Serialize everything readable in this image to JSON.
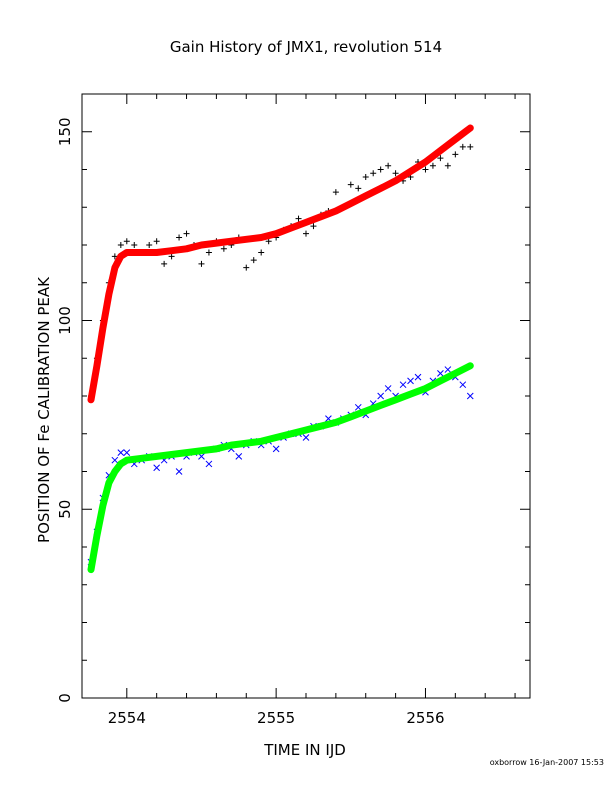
{
  "chart_data": {
    "type": "scatter",
    "title": "Gain History of JMX1, revolution 514",
    "xlabel": "TIME IN IJD",
    "ylabel": "POSITION OF Fe CALIBRATION PEAK",
    "xlim": [
      2553.7,
      2556.7
    ],
    "ylim": [
      0,
      160
    ],
    "xticks": [
      2554,
      2555,
      2556
    ],
    "xticklabels": [
      "2554",
      "2555",
      "2556"
    ],
    "yticks": [
      0,
      50,
      100,
      150
    ],
    "yticklabels": [
      "0",
      "50",
      "100",
      "150"
    ],
    "grid": false,
    "legend": "none",
    "series": [
      {
        "marker": "plus",
        "color": "#000000",
        "x": [
          2553.76,
          2553.8,
          2553.84,
          2553.88,
          2553.92,
          2553.96,
          2554.0,
          2554.05,
          2554.1,
          2554.15,
          2554.2,
          2554.25,
          2554.3,
          2554.35,
          2554.4,
          2554.45,
          2554.5,
          2554.55,
          2554.6,
          2554.65,
          2554.7,
          2554.75,
          2554.8,
          2554.85,
          2554.9,
          2554.95,
          2555.0,
          2555.05,
          2555.1,
          2555.15,
          2555.2,
          2555.25,
          2555.3,
          2555.35,
          2555.4,
          2555.45,
          2555.5,
          2555.55,
          2555.6,
          2555.65,
          2555.7,
          2555.75,
          2555.8,
          2555.85,
          2555.9,
          2555.95,
          2556.0,
          2556.05,
          2556.1,
          2556.15,
          2556.2,
          2556.25,
          2556.3
        ],
        "y": [
          80,
          90,
          100,
          110,
          117,
          120,
          121,
          120,
          118,
          120,
          121,
          115,
          117,
          122,
          123,
          120,
          115,
          118,
          121,
          119,
          120,
          122,
          114,
          116,
          118,
          121,
          122,
          124,
          125,
          127,
          123,
          125,
          128,
          129,
          134,
          130,
          136,
          135,
          138,
          139,
          140,
          141,
          139,
          137,
          138,
          142,
          140,
          141,
          143,
          141,
          144,
          146,
          146
        ]
      },
      {
        "marker": "line",
        "color": "#ff0000",
        "x": [
          2553.76,
          2553.8,
          2553.84,
          2553.88,
          2553.92,
          2553.96,
          2554.0,
          2554.1,
          2554.2,
          2554.3,
          2554.4,
          2554.5,
          2554.6,
          2554.7,
          2554.8,
          2554.9,
          2555.0,
          2555.1,
          2555.2,
          2555.3,
          2555.4,
          2555.5,
          2555.6,
          2555.7,
          2555.8,
          2555.9,
          2556.0,
          2556.1,
          2556.2,
          2556.3
        ],
        "y": [
          79,
          88,
          98,
          107,
          114,
          117,
          118,
          118,
          118,
          118.5,
          119,
          120,
          120.5,
          121,
          121.5,
          122,
          123,
          124.5,
          126,
          127.5,
          129,
          131,
          133,
          135,
          137,
          139.5,
          142,
          145,
          148,
          151
        ]
      },
      {
        "marker": "cross",
        "color": "#0000ff",
        "x": [
          2553.76,
          2553.8,
          2553.84,
          2553.88,
          2553.92,
          2553.96,
          2554.0,
          2554.05,
          2554.1,
          2554.15,
          2554.2,
          2554.25,
          2554.3,
          2554.35,
          2554.4,
          2554.45,
          2554.5,
          2554.55,
          2554.6,
          2554.65,
          2554.7,
          2554.75,
          2554.8,
          2554.85,
          2554.9,
          2554.95,
          2555.0,
          2555.05,
          2555.1,
          2555.15,
          2555.2,
          2555.25,
          2555.3,
          2555.35,
          2555.4,
          2555.45,
          2555.5,
          2555.55,
          2555.6,
          2555.65,
          2555.7,
          2555.75,
          2555.8,
          2555.85,
          2555.9,
          2555.95,
          2556.0,
          2556.05,
          2556.1,
          2556.15,
          2556.2,
          2556.25,
          2556.3
        ],
        "y": [
          36,
          44,
          53,
          59,
          63,
          65,
          65,
          62,
          63,
          64,
          61,
          63,
          64,
          60,
          64,
          65,
          64,
          62,
          66,
          67,
          66,
          64,
          67,
          68,
          67,
          68,
          66,
          69,
          70,
          70,
          69,
          72,
          72,
          74,
          73,
          74,
          75,
          77,
          75,
          78,
          80,
          82,
          80,
          83,
          84,
          85,
          81,
          84,
          86,
          87,
          85,
          83,
          80
        ]
      },
      {
        "marker": "line",
        "color": "#00ff00",
        "x": [
          2553.76,
          2553.8,
          2553.84,
          2553.88,
          2553.92,
          2553.96,
          2554.0,
          2554.1,
          2554.2,
          2554.3,
          2554.4,
          2554.5,
          2554.6,
          2554.7,
          2554.8,
          2554.9,
          2555.0,
          2555.1,
          2555.2,
          2555.3,
          2555.4,
          2555.5,
          2555.6,
          2555.7,
          2555.8,
          2555.9,
          2556.0,
          2556.1,
          2556.2,
          2556.3
        ],
        "y": [
          34,
          43,
          51,
          57,
          60,
          62,
          63,
          63.5,
          64,
          64.5,
          65,
          65.5,
          66,
          67,
          67.5,
          68,
          69,
          70,
          71,
          72,
          73,
          74.5,
          76,
          77.5,
          79,
          80.5,
          82,
          84,
          86,
          88
        ]
      }
    ]
  },
  "footer_text": "oxborrow 16-Jan-2007 15:53"
}
